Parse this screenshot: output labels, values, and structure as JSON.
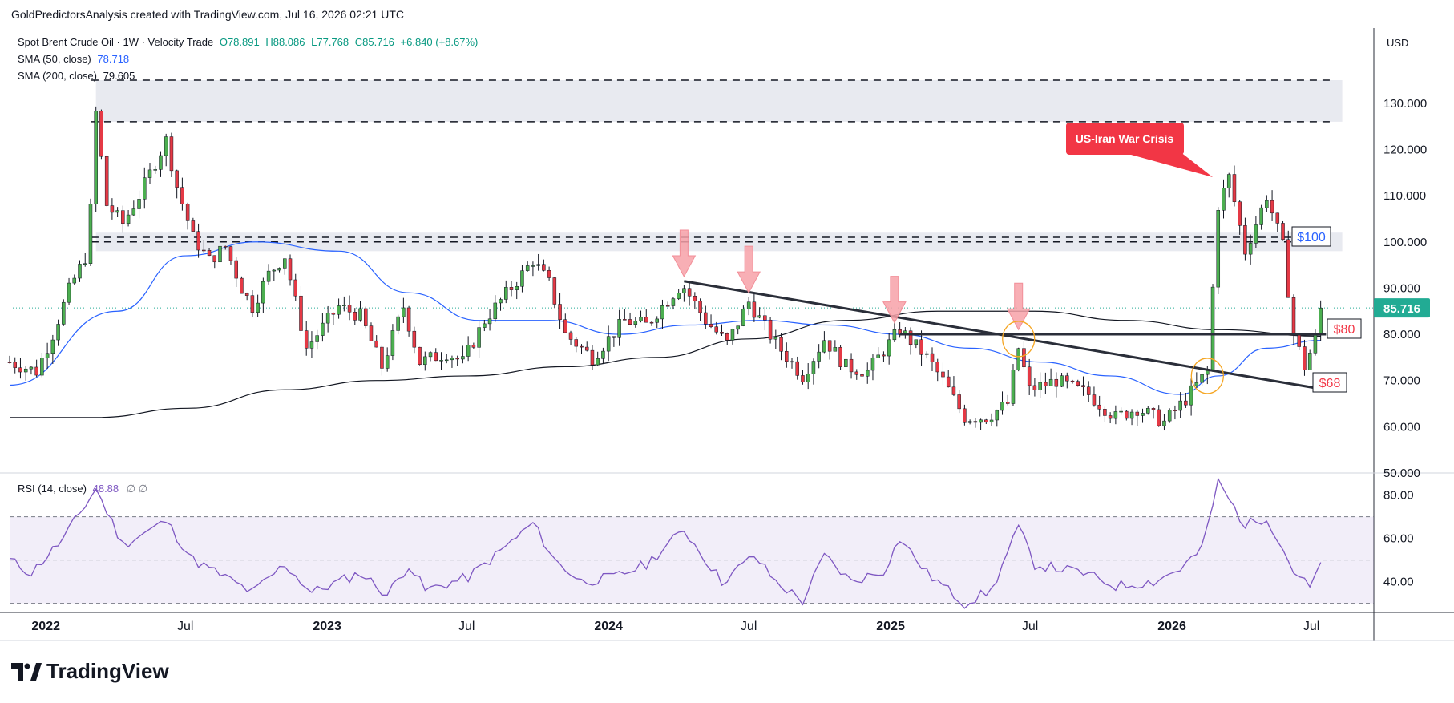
{
  "header": {
    "attribution": "GoldPredictorsAnalysis created with TradingView.com, Jul 16, 2026 02:21 UTC"
  },
  "legend": {
    "symbol": "Spot Brent Crude Oil · 1W · Velocity Trade",
    "open": "O78.891",
    "high": "H88.086",
    "low": "L77.768",
    "close": "C85.716",
    "change": "+6.840 (+8.67%)",
    "sma50_label": "SMA (50, close)",
    "sma50_value": "78.718",
    "sma200_label": "SMA (200, close)",
    "sma200_value": "79.605",
    "rsi_label": "RSI (14, close)",
    "rsi_value": "48.88",
    "rsi_extra": "∅ ∅"
  },
  "currency": "USD",
  "brand": {
    "name": "TradingView"
  },
  "colors": {
    "up": "#089981",
    "down": "#f23645",
    "candle_up": "#4caf50",
    "candle_down": "#e53945",
    "sma50": "#2962ff",
    "sma200": "#131722",
    "rsi": "#7e57c2",
    "last_price_bg": "#22ab94",
    "callout": "#f23645",
    "level100": "#2962ff",
    "level80": "#f23645",
    "level68": "#f23645"
  },
  "chart_data": {
    "type": "candlestick",
    "title": "Spot Brent Crude Oil · 1W · Velocity Trade",
    "y_axis": {
      "ticks": [
        130,
        120,
        110,
        100,
        90,
        80,
        70,
        60,
        50
      ],
      "tick_labels": [
        "130.000",
        "120.000",
        "110.000",
        "100.000",
        "90.000",
        "80.000",
        "70.000",
        "60.000",
        "50.000"
      ],
      "ylim": [
        50,
        135
      ]
    },
    "x_axis": {
      "tick_labels": [
        "2022",
        "Jul",
        "2023",
        "Jul",
        "2024",
        "Jul",
        "2025",
        "Jul",
        "2026",
        "Jul"
      ],
      "xlim": [
        "2021-11-15",
        "2026-09-20"
      ]
    },
    "last_price": "85.716",
    "price_path": [
      [
        "2021-11-15",
        74
      ],
      [
        "2021-12-20",
        72
      ],
      [
        "2022-01-10",
        80
      ],
      [
        "2022-02-01",
        90
      ],
      [
        "2022-02-25",
        98
      ],
      [
        "2022-03-07",
        128
      ],
      [
        "2022-03-21",
        108
      ],
      [
        "2022-04-11",
        104
      ],
      [
        "2022-05-02",
        110
      ],
      [
        "2022-06-06",
        122
      ],
      [
        "2022-06-20",
        112
      ],
      [
        "2022-07-11",
        101
      ],
      [
        "2022-08-01",
        96
      ],
      [
        "2022-08-22",
        99
      ],
      [
        "2022-09-12",
        90
      ],
      [
        "2022-09-26",
        86
      ],
      [
        "2022-10-17",
        93
      ],
      [
        "2022-11-07",
        97
      ],
      [
        "2022-12-05",
        77
      ],
      [
        "2023-01-16",
        86
      ],
      [
        "2023-02-13",
        84
      ],
      [
        "2023-03-13",
        73
      ],
      [
        "2023-04-10",
        86
      ],
      [
        "2023-05-01",
        74
      ],
      [
        "2023-06-05",
        76
      ],
      [
        "2023-06-26",
        74
      ],
      [
        "2023-07-24",
        83
      ],
      [
        "2023-09-11",
        93
      ],
      [
        "2023-09-25",
        96
      ],
      [
        "2023-10-16",
        91
      ],
      [
        "2023-11-06",
        80
      ],
      [
        "2023-12-11",
        75
      ],
      [
        "2024-01-22",
        83
      ],
      [
        "2024-02-19",
        82
      ],
      [
        "2024-04-05",
        91
      ],
      [
        "2024-05-06",
        83
      ],
      [
        "2024-06-03",
        78
      ],
      [
        "2024-07-01",
        87
      ],
      [
        "2024-08-05",
        78
      ],
      [
        "2024-09-09",
        71
      ],
      [
        "2024-10-07",
        79
      ],
      [
        "2024-11-04",
        73
      ],
      [
        "2024-12-02",
        72
      ],
      [
        "2025-01-13",
        81
      ],
      [
        "2025-02-17",
        75
      ],
      [
        "2025-03-10",
        70
      ],
      [
        "2025-04-07",
        62
      ],
      [
        "2025-05-05",
        62
      ],
      [
        "2025-06-02",
        65
      ],
      [
        "2025-06-16",
        77
      ],
      [
        "2025-06-30",
        68
      ],
      [
        "2025-08-04",
        70
      ],
      [
        "2025-09-15",
        67
      ],
      [
        "2025-10-20",
        62
      ],
      [
        "2025-11-17",
        64
      ],
      [
        "2025-12-22",
        61
      ],
      [
        "2026-01-19",
        66
      ],
      [
        "2026-02-16",
        72
      ],
      [
        "2026-03-02",
        108
      ],
      [
        "2026-03-16",
        114
      ],
      [
        "2026-04-06",
        98
      ],
      [
        "2026-05-04",
        110
      ],
      [
        "2026-05-25",
        99
      ],
      [
        "2026-06-08",
        80
      ],
      [
        "2026-06-22",
        73
      ],
      [
        "2026-07-06",
        79
      ],
      [
        "2026-07-13",
        85.7
      ]
    ],
    "sma50_path": [
      [
        "2021-11-15",
        69
      ],
      [
        "2022-04-04",
        85
      ],
      [
        "2022-07-01",
        97
      ],
      [
        "2022-10-01",
        100
      ],
      [
        "2023-01-16",
        98
      ],
      [
        "2023-04-17",
        89
      ],
      [
        "2023-07-17",
        83
      ],
      [
        "2023-10-16",
        83
      ],
      [
        "2024-01-15",
        80
      ],
      [
        "2024-04-15",
        82
      ],
      [
        "2024-07-15",
        83
      ],
      [
        "2024-10-14",
        82
      ],
      [
        "2025-01-13",
        80
      ],
      [
        "2025-04-14",
        77
      ],
      [
        "2025-07-14",
        74
      ],
      [
        "2025-10-13",
        71
      ],
      [
        "2026-01-12",
        67
      ],
      [
        "2026-03-02",
        71
      ],
      [
        "2026-05-04",
        77
      ],
      [
        "2026-07-13",
        78.7
      ]
    ],
    "sma200_path": [
      [
        "2021-11-15",
        62
      ],
      [
        "2022-03-07",
        62
      ],
      [
        "2022-07-04",
        64
      ],
      [
        "2022-11-07",
        68
      ],
      [
        "2023-03-06",
        70
      ],
      [
        "2023-07-03",
        71
      ],
      [
        "2023-11-06",
        73
      ],
      [
        "2024-03-04",
        75
      ],
      [
        "2024-07-01",
        79
      ],
      [
        "2024-11-04",
        83
      ],
      [
        "2025-03-03",
        85
      ],
      [
        "2025-07-07",
        85
      ],
      [
        "2025-11-03",
        83
      ],
      [
        "2026-03-02",
        81
      ],
      [
        "2026-07-13",
        79.6
      ]
    ],
    "resistance_zones": [
      {
        "from": 126,
        "to": 135
      },
      {
        "from": 98,
        "to": 102
      }
    ],
    "dashed_levels": [
      135,
      126,
      101,
      100
    ],
    "horizontal_line": {
      "value": 80,
      "from": "2025-01-13",
      "to": "2026-07-20"
    },
    "trendline": {
      "from": [
        "2024-04-08",
        91.5
      ],
      "to": [
        "2026-07-20",
        68
      ]
    },
    "arrows": [
      "2024-04-08",
      "2024-07-01",
      "2025-01-06",
      "2025-06-16"
    ],
    "circles": [
      [
        "2025-06-16",
        79
      ],
      [
        "2026-02-16",
        71
      ]
    ],
    "labels": [
      {
        "text": "US-Iran War Crisis",
        "date": "2026-02-23",
        "value": 114
      },
      {
        "text": "$100",
        "value": 100
      },
      {
        "text": "$80",
        "value": 80
      },
      {
        "text": "$68",
        "value": 68
      }
    ],
    "rsi": {
      "ticks": [
        80,
        60,
        40
      ],
      "tick_labels": [
        "80.00",
        "60.00",
        "40.00"
      ],
      "ylim": [
        28,
        88
      ],
      "bands": [
        70,
        50,
        30
      ],
      "path": [
        [
          "2021-11-15",
          50
        ],
        [
          "2021-12-13",
          44
        ],
        [
          "2022-01-24",
          60
        ],
        [
          "2022-03-07",
          83
        ],
        [
          "2022-04-11",
          57
        ],
        [
          "2022-06-06",
          68
        ],
        [
          "2022-07-11",
          50
        ],
        [
          "2022-08-22",
          42
        ],
        [
          "2022-09-26",
          35
        ],
        [
          "2022-11-07",
          48
        ],
        [
          "2022-12-12",
          35
        ],
        [
          "2023-02-13",
          44
        ],
        [
          "2023-03-20",
          34
        ],
        [
          "2023-04-17",
          48
        ],
        [
          "2023-05-08",
          36
        ],
        [
          "2023-07-03",
          42
        ],
        [
          "2023-08-07",
          52
        ],
        [
          "2023-09-25",
          67
        ],
        [
          "2023-10-23",
          50
        ],
        [
          "2023-11-27",
          40
        ],
        [
          "2024-01-08",
          42
        ],
        [
          "2024-02-19",
          48
        ],
        [
          "2024-04-08",
          64
        ],
        [
          "2024-05-27",
          40
        ],
        [
          "2024-07-08",
          52
        ],
        [
          "2024-08-05",
          40
        ],
        [
          "2024-09-09",
          31
        ],
        [
          "2024-10-07",
          52
        ],
        [
          "2024-11-11",
          40
        ],
        [
          "2024-12-23",
          45
        ],
        [
          "2025-01-13",
          60
        ],
        [
          "2025-02-17",
          44
        ],
        [
          "2025-04-07",
          30
        ],
        [
          "2025-05-12",
          36
        ],
        [
          "2025-06-16",
          65
        ],
        [
          "2025-07-07",
          48
        ],
        [
          "2025-09-08",
          44
        ],
        [
          "2025-10-20",
          38
        ],
        [
          "2025-12-08",
          40
        ],
        [
          "2026-01-12",
          46
        ],
        [
          "2026-02-09",
          55
        ],
        [
          "2026-03-02",
          86
        ],
        [
          "2026-04-06",
          66
        ],
        [
          "2026-05-04",
          70
        ],
        [
          "2026-06-08",
          45
        ],
        [
          "2026-06-29",
          37
        ],
        [
          "2026-07-13",
          48.9
        ]
      ]
    }
  }
}
